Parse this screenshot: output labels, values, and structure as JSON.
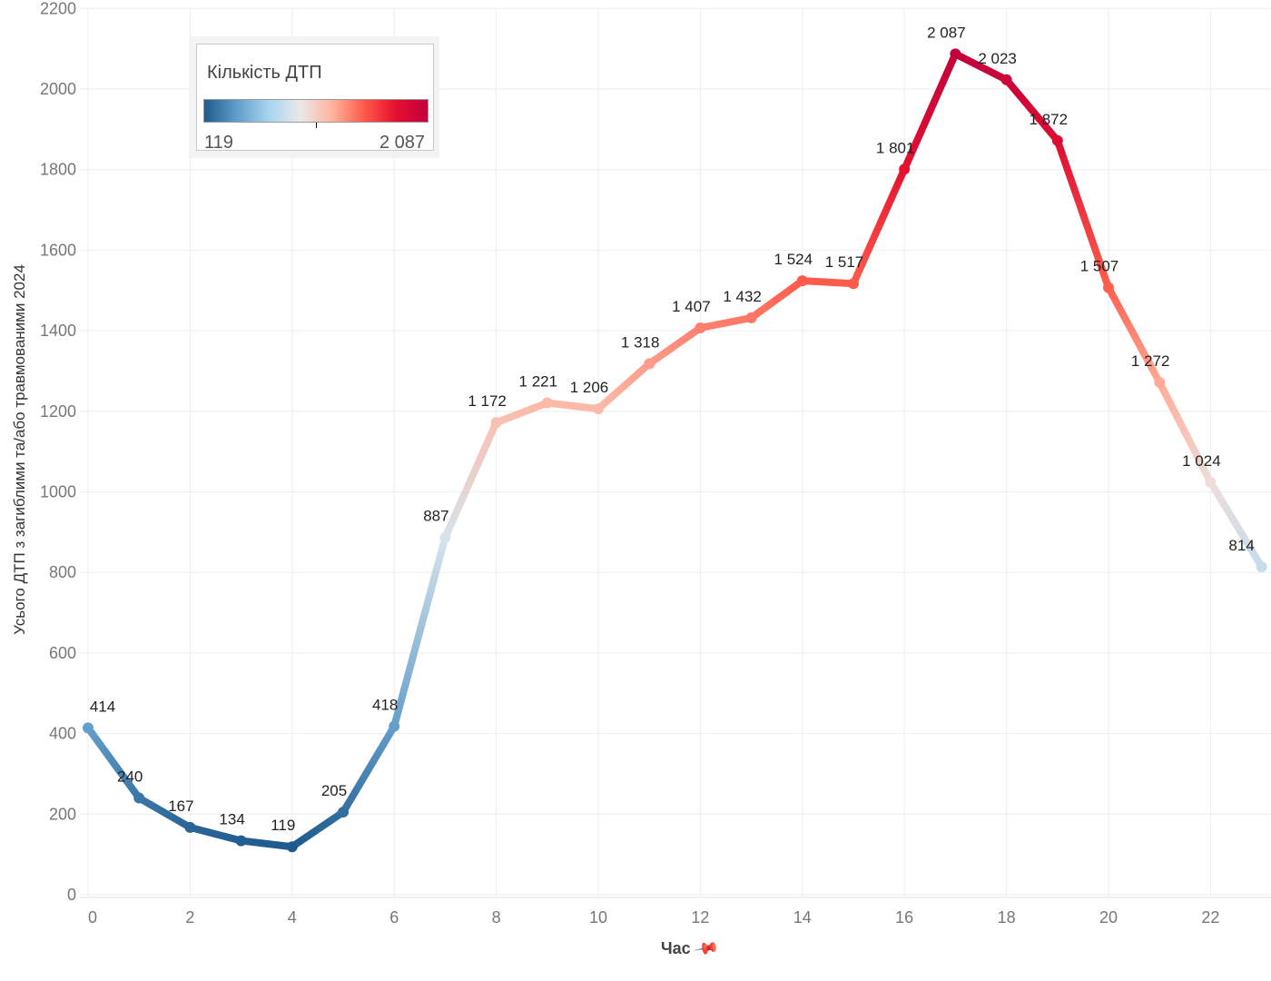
{
  "chart_data": {
    "type": "line",
    "title": "",
    "xlabel": "Час",
    "ylabel": "Усього ДТП з загиблими та/або травмованими 2024",
    "x": [
      0,
      1,
      2,
      3,
      4,
      5,
      6,
      7,
      8,
      9,
      10,
      11,
      12,
      13,
      14,
      15,
      16,
      17,
      18,
      19,
      20,
      21,
      22,
      23
    ],
    "values": [
      414,
      240,
      167,
      134,
      119,
      205,
      418,
      887,
      1172,
      1221,
      1206,
      1318,
      1407,
      1432,
      1524,
      1517,
      1801,
      2087,
      2023,
      1872,
      1507,
      1272,
      1024,
      814
    ],
    "data_labels": [
      "414",
      "240",
      "167",
      "134",
      "119",
      "205",
      "418",
      "887",
      "1 172",
      "1 221",
      "1 206",
      "1 318",
      "1 407",
      "1 432",
      "1 524",
      "1 517",
      "1 801",
      "2 087",
      "2 023",
      "1 872",
      "1 507",
      "1 272",
      "1 024",
      "814"
    ],
    "x_ticks": [
      "0",
      "2",
      "4",
      "6",
      "8",
      "10",
      "12",
      "14",
      "16",
      "18",
      "20",
      "22"
    ],
    "y_ticks": [
      "0",
      "200",
      "400",
      "600",
      "800",
      "1000",
      "1200",
      "1400",
      "1600",
      "1800",
      "2000",
      "2200"
    ],
    "ylim": [
      0,
      2200
    ],
    "xlim": [
      0,
      23
    ],
    "grid": true,
    "legend": {
      "title": "Кількість ДТП",
      "min_label": "119",
      "max_label": "2 087",
      "position": "top-left",
      "colors": [
        "#1f5a8e",
        "#5f9cc8",
        "#a6d3ee",
        "#e9e9e9",
        "#ffb4a0",
        "#ff5a4a",
        "#e5102f",
        "#c3003c"
      ]
    }
  },
  "x_axis": {
    "pin_icon": "pin-icon"
  }
}
